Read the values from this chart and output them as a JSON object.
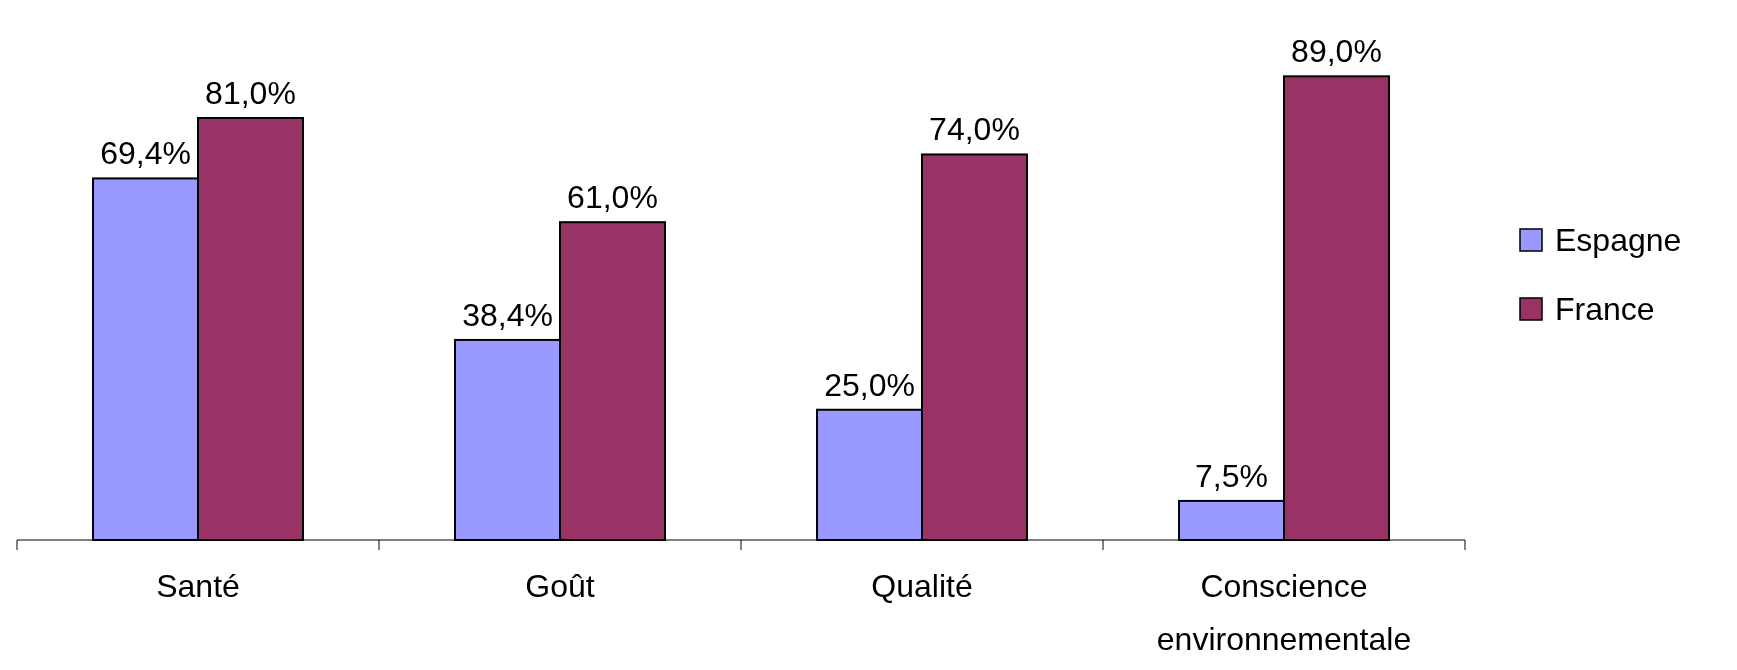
{
  "chart_data": {
    "type": "bar",
    "categories": [
      "Santé",
      "Goût",
      "Qualité",
      "Conscience environnementale"
    ],
    "series": [
      {
        "name": "Espagne",
        "color": "#9999ff",
        "values": [
          69.4,
          38.4,
          25.0,
          7.5
        ],
        "value_labels": [
          "69,4%",
          "38,4%",
          "25,0%",
          "7,5%"
        ]
      },
      {
        "name": "France",
        "color": "#993366",
        "values": [
          81.0,
          61.0,
          74.0,
          89.0
        ],
        "value_labels": [
          "81,0%",
          "61,0%",
          "74,0%",
          "89,0%"
        ]
      }
    ],
    "legend": "right"
  }
}
